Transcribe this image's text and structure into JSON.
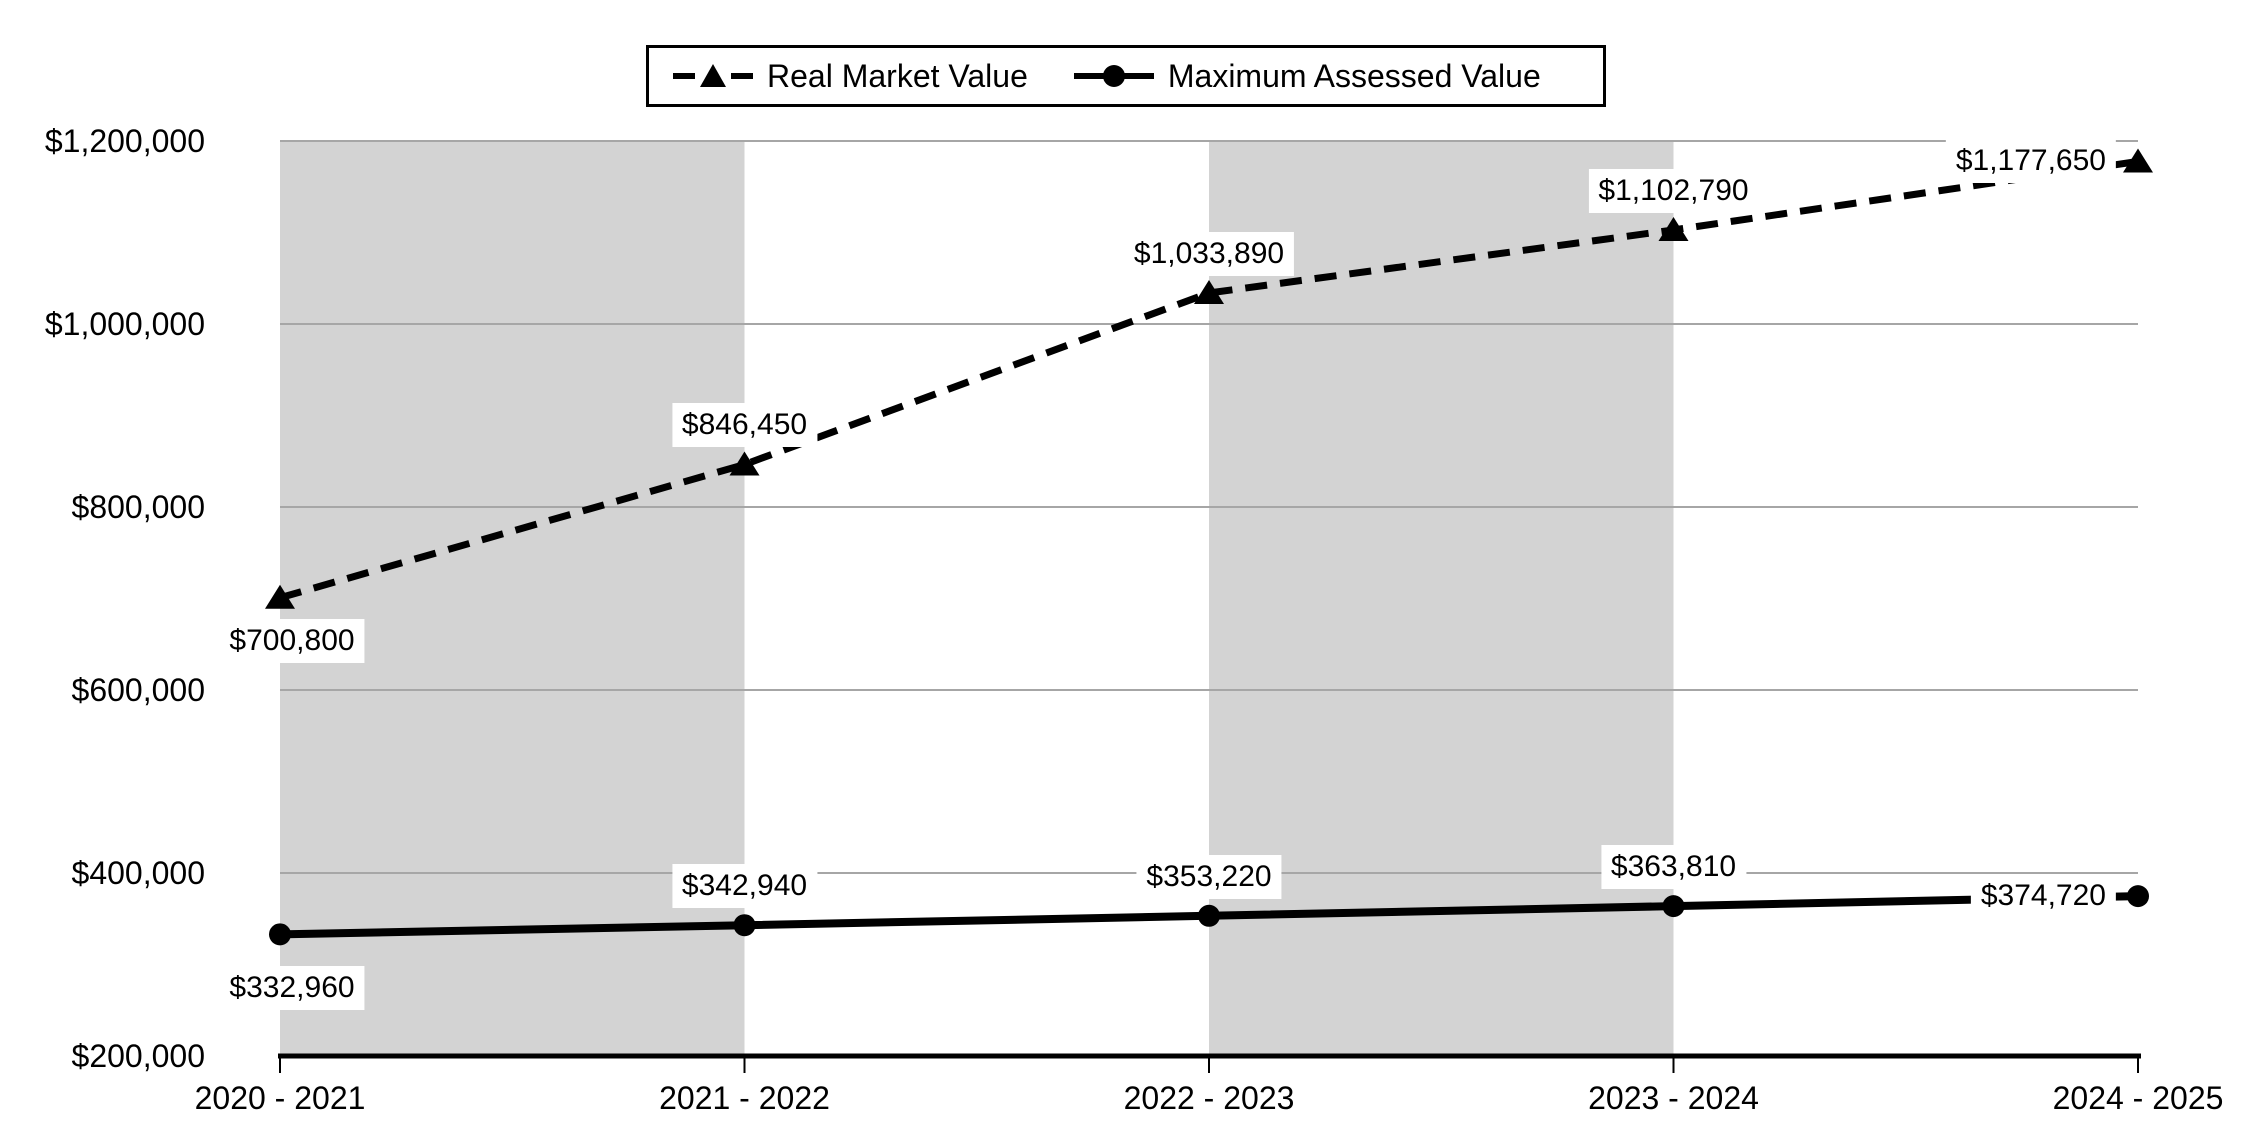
{
  "chart_data": {
    "type": "line",
    "title": "",
    "xlabel": "",
    "ylabel": "",
    "categories": [
      "2020 - 2021",
      "2021 - 2022",
      "2022 - 2023",
      "2023 - 2024",
      "2024 - 2025"
    ],
    "series": [
      {
        "name": "Real Market Value",
        "style": "dashed",
        "marker": "triangle",
        "values": [
          700800,
          846450,
          1033890,
          1102790,
          1177650
        ],
        "labels": [
          "$700,800",
          "$846,450",
          "$1,033,890",
          "$1,102,790",
          "$1,177,650"
        ]
      },
      {
        "name": "Maximum Assessed Value",
        "style": "solid",
        "marker": "circle",
        "values": [
          332960,
          342940,
          353220,
          363810,
          374720
        ],
        "labels": [
          "$332,960",
          "$342,940",
          "$353,220",
          "$363,810",
          "$374,720"
        ]
      }
    ],
    "y_ticks": [
      "$1,200,000",
      "$1,000,000",
      "$800,000",
      "$600,000",
      "$400,000",
      "$200,000"
    ],
    "ylim": [
      200000,
      1200000
    ],
    "y_step": 200000,
    "grid": true,
    "legend_position": "top",
    "colors": {
      "line": "#000000",
      "band": "#d3d3d3",
      "gridline": "#a6a6a6",
      "axis": "#000000",
      "background": "#ffffff"
    }
  }
}
